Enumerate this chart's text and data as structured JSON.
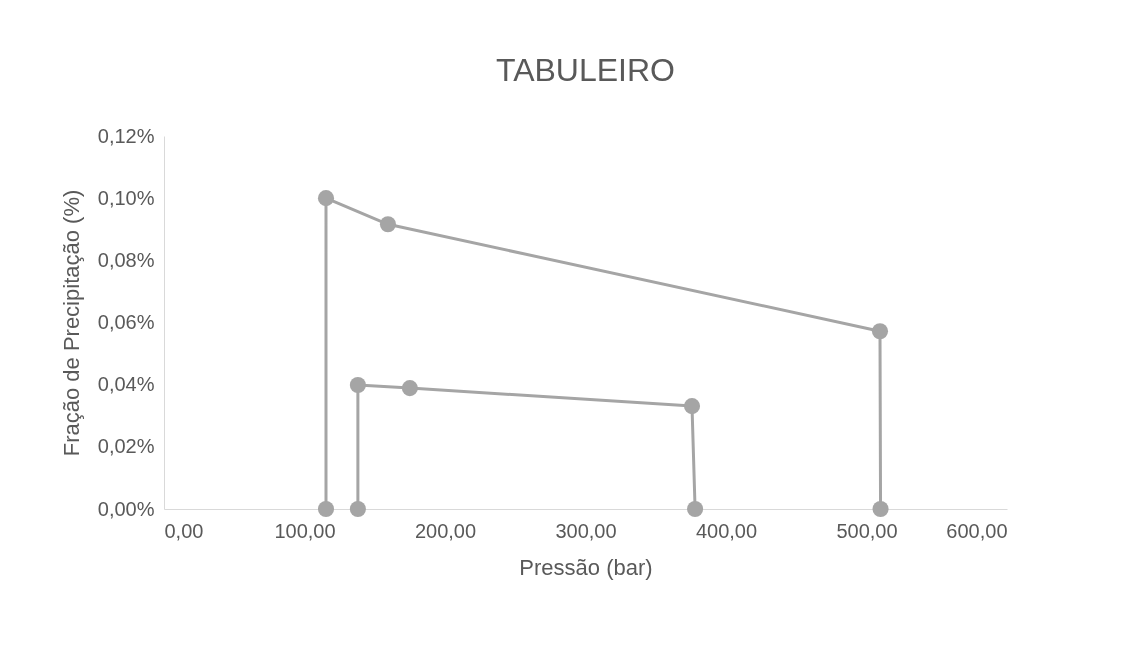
{
  "chart_data": {
    "type": "line",
    "title": "TABULEIRO",
    "xlabel": "Pressão (bar)",
    "ylabel": "Fração de Precipitação (%)",
    "series": [
      {
        "color": "#a5a5a5",
        "x": [
          115.3,
          115.3,
          159.4,
          509.6,
          510
        ],
        "values": [
          0,
          0.1,
          0.0916,
          0.0572,
          0
        ]
      },
      {
        "color": "#a5a5a5",
        "x": [
          138,
          138,
          175,
          375.8,
          378
        ],
        "values": [
          0,
          0.0399,
          0.0389,
          0.0331,
          0
        ]
      }
    ],
    "xlim": [
      0,
      600
    ],
    "xticks": [
      {
        "value": 0,
        "label": "0,00"
      },
      {
        "value": 100,
        "label": "100,00"
      },
      {
        "value": 200,
        "label": "200,00"
      },
      {
        "value": 300,
        "label": "300,00"
      },
      {
        "value": 400,
        "label": "400,00"
      },
      {
        "value": 500,
        "label": "500,00"
      },
      {
        "value": 600,
        "label": "600,00"
      }
    ],
    "ylim": [
      0,
      0.12
    ],
    "yticks": [
      {
        "value": 0,
        "label": "0,00%"
      },
      {
        "value": 0.02,
        "label": "0,02%"
      },
      {
        "value": 0.04,
        "label": "0,04%"
      },
      {
        "value": 0.06,
        "label": "0,06%"
      },
      {
        "value": 0.08,
        "label": "0,08%"
      },
      {
        "value": 0.1,
        "label": "0,10%"
      },
      {
        "value": 0.12,
        "label": "0,12%"
      }
    ],
    "grid": false,
    "marker": "circle",
    "line_style": "solid"
  }
}
